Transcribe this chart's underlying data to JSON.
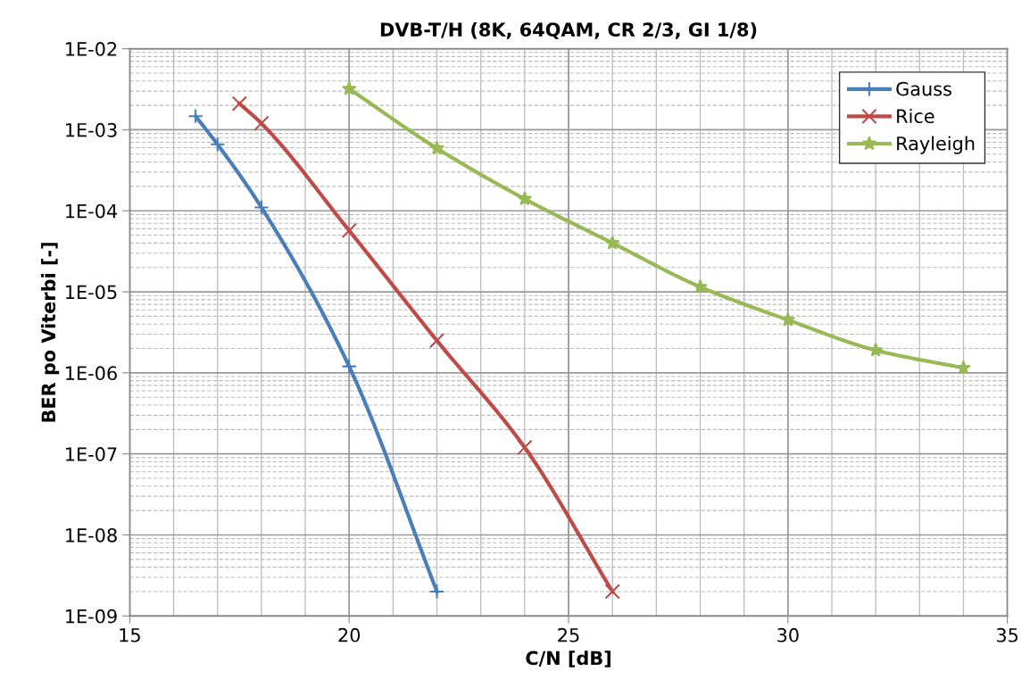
{
  "chart_data": {
    "type": "line",
    "title": "DVB-T/H (8K, 64QAM, CR 2/3, GI 1/8)",
    "xlabel": "C/N [dB]",
    "ylabel": "BER po Viterbi [-]",
    "log": "y",
    "grid": true,
    "legend": "top right",
    "line_style": "solid",
    "xlim": [
      15,
      35
    ],
    "xticks": [
      15,
      20,
      25,
      30,
      35
    ],
    "ylim": [
      1e-09,
      0.01
    ],
    "yticks": [
      {
        "value": 1e-09,
        "label": "1E-09"
      },
      {
        "value": 1e-08,
        "label": "1E-08"
      },
      {
        "value": 1e-07,
        "label": "1E-07"
      },
      {
        "value": 1e-06,
        "label": "1E-06"
      },
      {
        "value": 1e-05,
        "label": "1E-05"
      },
      {
        "value": 0.0001,
        "label": "1E-04"
      },
      {
        "value": 0.001,
        "label": "1E-03"
      },
      {
        "value": 0.01,
        "label": "1E-02"
      }
    ],
    "series": [
      {
        "name": "Gauss",
        "color": "#4a7ebb",
        "marker": "plus",
        "x": [
          16.5,
          17,
          18,
          20,
          22
        ],
        "values": [
          0.00147,
          0.00066,
          0.00011,
          1.2e-06,
          2e-09
        ]
      },
      {
        "name": "Rice",
        "color": "#be4b48",
        "marker": "cross",
        "x": [
          17.5,
          18,
          20,
          22,
          24,
          26
        ],
        "values": [
          0.0021,
          0.0012,
          5.7e-05,
          2.5e-06,
          1.2e-07,
          2e-09
        ]
      },
      {
        "name": "Rayleigh",
        "color": "#98b954",
        "marker": "star",
        "x": [
          20,
          22,
          24,
          26,
          28,
          30,
          32,
          34
        ],
        "values": [
          0.0032,
          0.00059,
          0.00014,
          4e-05,
          1.15e-05,
          4.5e-06,
          1.9e-06,
          1.15e-06
        ]
      }
    ]
  }
}
